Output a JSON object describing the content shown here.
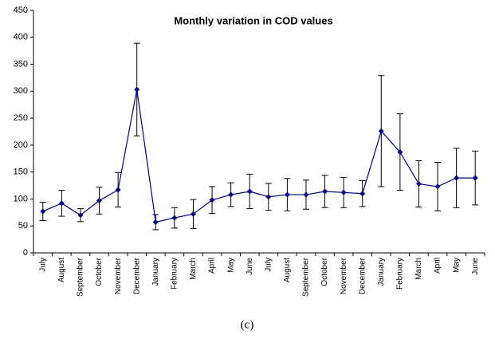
{
  "chart_data": {
    "type": "line",
    "title": "Monthly variation in COD values",
    "categories": [
      "July",
      "August",
      "September",
      "October",
      "November",
      "December",
      "January",
      "February",
      "March",
      "April",
      "May",
      "June",
      "July",
      "August",
      "September",
      "October",
      "November",
      "December",
      "January",
      "February",
      "March",
      "April",
      "May",
      "June"
    ],
    "values": [
      77,
      92,
      70,
      97,
      117,
      303,
      57,
      65,
      72,
      98,
      108,
      114,
      104,
      108,
      108,
      114,
      112,
      110,
      226,
      187,
      128,
      123,
      139,
      139
    ],
    "errors": [
      17,
      24,
      12,
      25,
      32,
      86,
      14,
      19,
      27,
      25,
      22,
      32,
      25,
      30,
      27,
      30,
      28,
      24,
      103,
      71,
      43,
      45,
      55,
      50
    ],
    "color": "#000080",
    "ylim": [
      0,
      450
    ],
    "yticks": [
      0,
      50,
      100,
      150,
      200,
      250,
      300,
      350,
      400,
      450
    ],
    "grid": false
  },
  "caption": "(c)"
}
